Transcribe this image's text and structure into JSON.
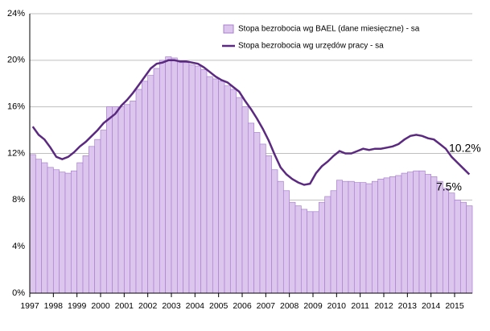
{
  "chart_data": {
    "type": "combo",
    "x": [
      1997,
      1997.25,
      1997.5,
      1997.75,
      1998,
      1998.25,
      1998.5,
      1998.75,
      1999,
      1999.25,
      1999.5,
      1999.75,
      2000,
      2000.25,
      2000.5,
      2000.75,
      2001,
      2001.25,
      2001.5,
      2001.75,
      2002,
      2002.25,
      2002.5,
      2002.75,
      2003,
      2003.25,
      2003.5,
      2003.75,
      2004,
      2004.25,
      2004.5,
      2004.75,
      2005,
      2005.25,
      2005.5,
      2005.75,
      2006,
      2006.25,
      2006.5,
      2006.75,
      2007,
      2007.25,
      2007.5,
      2007.75,
      2008,
      2008.25,
      2008.5,
      2008.75,
      2009,
      2009.25,
      2009.5,
      2009.75,
      2010,
      2010.25,
      2010.5,
      2010.75,
      2011,
      2011.25,
      2011.5,
      2011.75,
      2012,
      2012.25,
      2012.5,
      2012.75,
      2013,
      2013.25,
      2013.5,
      2013.75,
      2014,
      2014.25,
      2014.5,
      2014.75,
      2015,
      2015.25,
      2015.5
    ],
    "series": [
      {
        "name": "Stopa bezrobocia wg BAEL (dane miesięczne) - sa",
        "type": "bar",
        "color": "#dcc6ee",
        "stroke": "#a880cf",
        "values": [
          11.9,
          11.5,
          11.2,
          10.8,
          10.6,
          10.4,
          10.3,
          10.5,
          11.2,
          11.8,
          12.6,
          13.2,
          14.0,
          16.0,
          16.0,
          16.0,
          16.2,
          16.5,
          17.5,
          18.2,
          18.7,
          19.3,
          20.0,
          20.3,
          20.2,
          19.8,
          19.8,
          19.6,
          19.5,
          19.2,
          18.6,
          18.4,
          18.2,
          17.8,
          17.5,
          16.8,
          16.0,
          14.6,
          13.8,
          12.8,
          11.8,
          10.6,
          9.6,
          8.8,
          7.8,
          7.5,
          7.2,
          7.0,
          7.0,
          7.8,
          8.3,
          8.8,
          9.7,
          9.6,
          9.6,
          9.5,
          9.5,
          9.4,
          9.6,
          9.8,
          9.9,
          10.0,
          10.1,
          10.3,
          10.4,
          10.5,
          10.5,
          10.2,
          10.0,
          9.6,
          9.0,
          8.6,
          8.0,
          7.8,
          7.5
        ]
      },
      {
        "name": "Stopa bezrobocia wg urzędów pracy - sa",
        "type": "line",
        "color": "#5b2a80",
        "values": [
          14.3,
          13.6,
          13.2,
          12.5,
          11.7,
          11.5,
          11.7,
          12.1,
          12.6,
          13.0,
          13.5,
          14.0,
          14.6,
          15.0,
          15.4,
          16.1,
          16.6,
          17.2,
          17.9,
          18.6,
          19.3,
          19.7,
          19.8,
          20.0,
          20.0,
          19.9,
          19.9,
          19.8,
          19.7,
          19.4,
          19.0,
          18.6,
          18.3,
          18.1,
          17.7,
          17.3,
          16.5,
          15.8,
          15.0,
          14.1,
          13.1,
          11.9,
          10.8,
          10.2,
          9.8,
          9.5,
          9.3,
          9.4,
          10.3,
          10.9,
          11.3,
          11.8,
          12.2,
          12.0,
          12.0,
          12.2,
          12.4,
          12.3,
          12.4,
          12.4,
          12.5,
          12.6,
          12.8,
          13.2,
          13.5,
          13.6,
          13.5,
          13.3,
          13.2,
          12.8,
          12.4,
          11.7,
          11.2,
          10.7,
          10.2
        ]
      }
    ],
    "annotations": [
      {
        "text": "10.2%"
      },
      {
        "text": "7.5%"
      }
    ],
    "xlim": [
      1997,
      2015.75
    ],
    "xticks": [
      1997,
      1998,
      1999,
      2000,
      2001,
      2002,
      2003,
      2004,
      2005,
      2006,
      2007,
      2008,
      2009,
      2010,
      2011,
      2012,
      2013,
      2014,
      2015
    ],
    "ylim": [
      0,
      24
    ],
    "yticks": [
      {
        "value": 0,
        "label": "0%"
      },
      {
        "value": 4,
        "label": "4%"
      },
      {
        "value": 8,
        "label": "8%"
      },
      {
        "value": 12,
        "label": "12%"
      },
      {
        "value": 16,
        "label": "16%"
      },
      {
        "value": 20,
        "label": "20%"
      },
      {
        "value": 24,
        "label": "24%"
      }
    ],
    "grid": true
  }
}
